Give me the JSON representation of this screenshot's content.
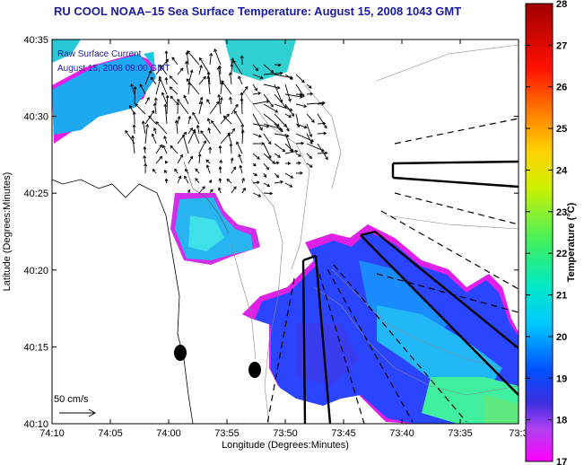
{
  "title": "RU COOL  NOAA–15  Sea Surface Temperature:  August 15, 2008 1043 GMT",
  "legend": {
    "line1": "Raw Surface Current",
    "line2": "August 15, 2008 09:00 GMT"
  },
  "scale_label": "50 cm/s",
  "x_axis": {
    "label": "Longitude (Degrees:Minutes)",
    "ticks": [
      "74:10",
      "74:05",
      "74:00",
      "73:55",
      "73:50",
      "73:45",
      "73:40",
      "73:35",
      "73:3"
    ]
  },
  "y_axis": {
    "label": "Latitude (Degrees:Minutes)",
    "ticks": [
      "40:35",
      "40:30",
      "40:25",
      "40:20",
      "40:15",
      "40:10"
    ]
  },
  "colorbar": {
    "label": "Temperature (°C)",
    "min": 17,
    "max": 28,
    "ticks": [
      "28",
      "27",
      "26",
      "25",
      "24",
      "23",
      "22",
      "21",
      "20",
      "19",
      "18",
      "17"
    ]
  }
}
